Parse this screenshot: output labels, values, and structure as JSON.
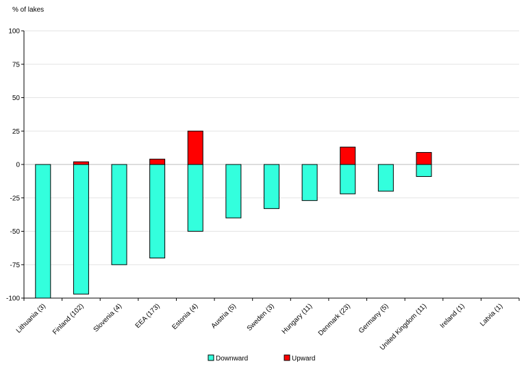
{
  "chart_data": {
    "type": "bar",
    "stacked": true,
    "ylabel": "% of lakes",
    "ylim": [
      -100,
      100
    ],
    "yticks": [
      100,
      75,
      50,
      25,
      0,
      -25,
      -50,
      -75,
      -100
    ],
    "grid": true,
    "legend_position": "bottom",
    "categories": [
      "Lithuania (3)",
      "Finland (102)",
      "Slovenia (4)",
      "EEA (173)",
      "Estonia (4)",
      "Austria (5)",
      "Sweden (3)",
      "Hungary (11)",
      "Denmark (23)",
      "Germany (5)",
      "United Kingdom (11)",
      "Ireland (1)",
      "Latvia (1)"
    ],
    "series": [
      {
        "name": "Downward",
        "color": "#33ffdd",
        "values": [
          -100,
          -97,
          -75,
          -70,
          -50,
          -40,
          -33,
          -27,
          -22,
          -20,
          -9,
          0,
          0
        ]
      },
      {
        "name": "Upward",
        "color": "#ff0000",
        "values": [
          0,
          2,
          0,
          4,
          25,
          0,
          0,
          0,
          13,
          0,
          9,
          0,
          0
        ]
      }
    ]
  }
}
